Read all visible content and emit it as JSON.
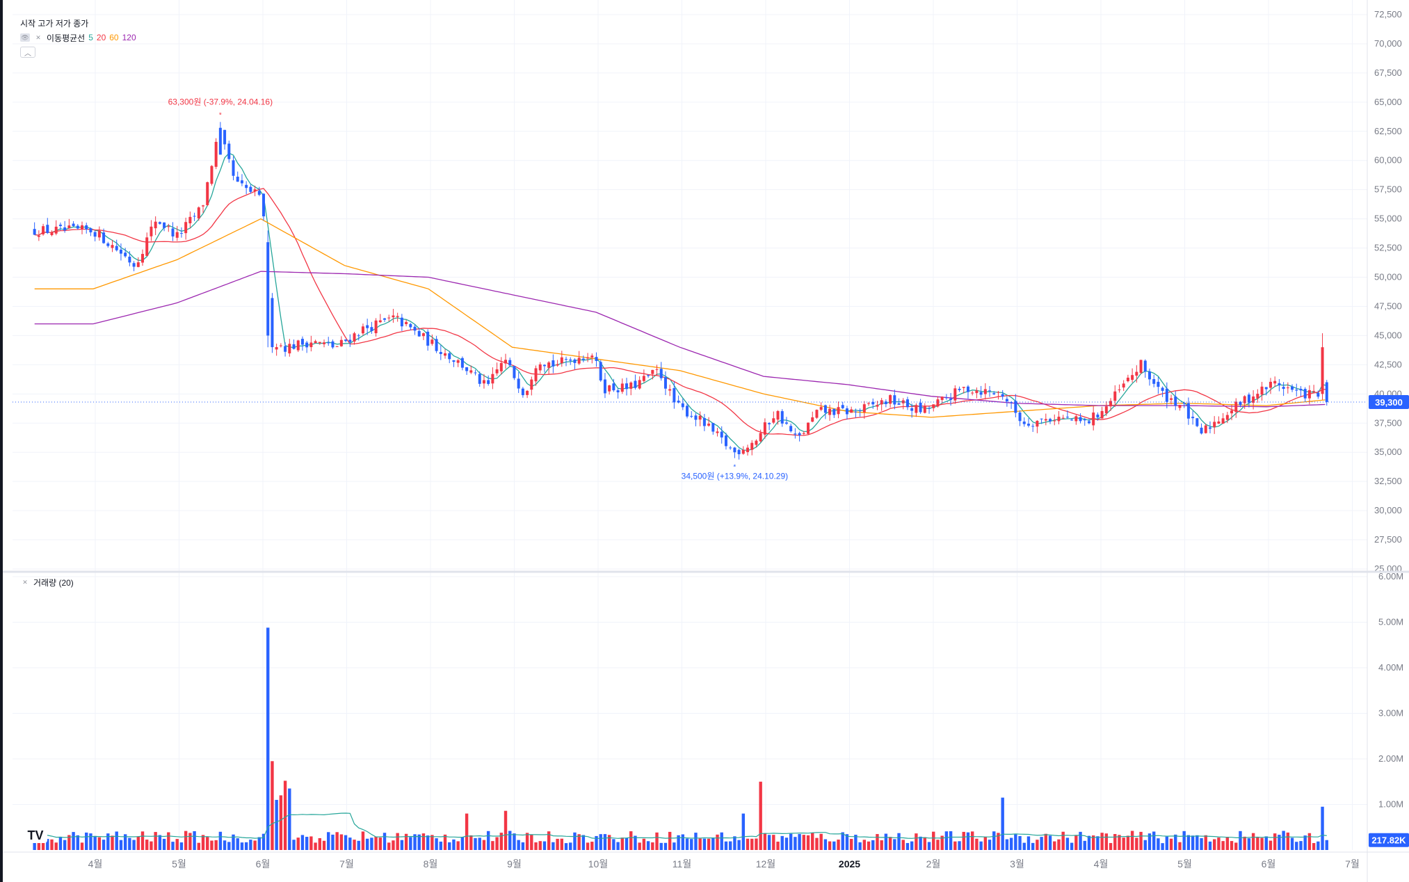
{
  "legend": {
    "ohlc_label": "시작 고가 저가 종가",
    "ma_label": "이동평균선",
    "ma_periods": [
      {
        "value": "5",
        "color": "#26a69a"
      },
      {
        "value": "20",
        "color": "#f23645"
      },
      {
        "value": "60",
        "color": "#ff9800"
      },
      {
        "value": "120",
        "color": "#9c27b0"
      }
    ],
    "collapse_icon": "chevron-up-icon",
    "volume_label": "거래량 (20)"
  },
  "annotations": {
    "high_label": "63,300원 (-37.9%, 24.04.16)",
    "low_label": "34,500원 (+13.9%, 24.10.29)"
  },
  "last_price_label": "39,300",
  "last_volume_label": "217.82K",
  "colors": {
    "up": "#f23645",
    "down": "#2962ff",
    "ma5": "#26a69a",
    "ma20": "#f23645",
    "ma60": "#ff9800",
    "ma120": "#9c27b0",
    "vol_ma": "#26a69a"
  },
  "chart_data": [
    {
      "type": "candlestick",
      "title": "",
      "ylim": [
        25000,
        72500
      ],
      "price_ticks": [
        "25,000",
        "27,500",
        "30,000",
        "32,500",
        "35,000",
        "37,500",
        "40,000",
        "42,500",
        "45,000",
        "47,500",
        "50,000",
        "52,500",
        "55,000",
        "57,500",
        "60,000",
        "62,500",
        "65,000",
        "67,500",
        "70,000",
        "72,500"
      ],
      "x_labels": [
        "4월",
        "5월",
        "6월",
        "7월",
        "8월",
        "9월",
        "10월",
        "11월",
        "12월",
        "2025",
        "2월",
        "3월",
        "4월",
        "5월",
        "6월",
        "7월"
      ],
      "anchors": [
        {
          "m": 0,
          "p": 54000
        },
        {
          "m": 0.35,
          "p": 52000
        },
        {
          "m": 0.5,
          "p": 51000
        },
        {
          "m": 0.75,
          "p": 55000
        },
        {
          "m": 1.0,
          "p": 53500
        },
        {
          "m": 1.3,
          "p": 56000
        },
        {
          "m": 1.5,
          "p": 62500
        },
        {
          "m": 1.7,
          "p": 58000
        },
        {
          "m": 1.97,
          "p": 57000
        },
        {
          "m": 2.05,
          "p": 55000
        },
        {
          "m": 2.1,
          "p": 44500
        },
        {
          "m": 2.3,
          "p": 44000
        },
        {
          "m": 2.6,
          "p": 44500
        },
        {
          "m": 2.9,
          "p": 44000
        },
        {
          "m": 3.2,
          "p": 45500
        },
        {
          "m": 3.6,
          "p": 46500
        },
        {
          "m": 4.0,
          "p": 44500
        },
        {
          "m": 4.4,
          "p": 42500
        },
        {
          "m": 4.7,
          "p": 40500
        },
        {
          "m": 4.9,
          "p": 43000
        },
        {
          "m": 5.15,
          "p": 40000
        },
        {
          "m": 5.3,
          "p": 43000
        },
        {
          "m": 5.5,
          "p": 42500
        },
        {
          "m": 5.95,
          "p": 43500
        },
        {
          "m": 6.1,
          "p": 40500
        },
        {
          "m": 6.4,
          "p": 40500
        },
        {
          "m": 6.75,
          "p": 42000
        },
        {
          "m": 6.95,
          "p": 39000
        },
        {
          "m": 7.2,
          "p": 38000
        },
        {
          "m": 7.65,
          "p": 35000
        },
        {
          "m": 7.9,
          "p": 36000
        },
        {
          "m": 8.15,
          "p": 38500
        },
        {
          "m": 8.4,
          "p": 36000
        },
        {
          "m": 8.65,
          "p": 38500
        },
        {
          "m": 9.1,
          "p": 38500
        },
        {
          "m": 9.5,
          "p": 39500
        },
        {
          "m": 9.9,
          "p": 38500
        },
        {
          "m": 10.4,
          "p": 40500
        },
        {
          "m": 10.85,
          "p": 40000
        },
        {
          "m": 11.1,
          "p": 37500
        },
        {
          "m": 11.5,
          "p": 38000
        },
        {
          "m": 11.85,
          "p": 37500
        },
        {
          "m": 12.1,
          "p": 39000
        },
        {
          "m": 12.5,
          "p": 42500
        },
        {
          "m": 12.75,
          "p": 40000
        },
        {
          "m": 13.0,
          "p": 39000
        },
        {
          "m": 13.2,
          "p": 36500
        },
        {
          "m": 13.45,
          "p": 38000
        },
        {
          "m": 13.75,
          "p": 39500
        },
        {
          "m": 14.1,
          "p": 41000
        },
        {
          "m": 14.4,
          "p": 40000
        },
        {
          "m": 14.6,
          "p": 40000
        },
        {
          "m": 14.7,
          "p": 40000
        },
        {
          "m": 14.72,
          "p": 39300
        }
      ],
      "high_mark": {
        "m": 1.5,
        "price": 63300
      },
      "low_mark": {
        "m": 7.65,
        "price": 34500
      },
      "last_price": 39300,
      "ma120_anchors": [
        {
          "m": 0,
          "p": 46000
        },
        {
          "m": 1,
          "p": 47800
        },
        {
          "m": 2,
          "p": 50500
        },
        {
          "m": 3,
          "p": 50300
        },
        {
          "m": 4,
          "p": 50000
        },
        {
          "m": 5,
          "p": 48500
        },
        {
          "m": 6,
          "p": 47000
        },
        {
          "m": 7,
          "p": 44000
        },
        {
          "m": 8,
          "p": 41500
        },
        {
          "m": 9,
          "p": 40800
        },
        {
          "m": 10,
          "p": 39800
        },
        {
          "m": 11,
          "p": 39200
        },
        {
          "m": 12,
          "p": 39000
        },
        {
          "m": 13,
          "p": 39000
        },
        {
          "m": 14,
          "p": 38900
        },
        {
          "m": 14.72,
          "p": 39100
        }
      ],
      "ma60_anchors": [
        {
          "m": 0,
          "p": 49000
        },
        {
          "m": 1,
          "p": 51500
        },
        {
          "m": 2,
          "p": 55000
        },
        {
          "m": 3,
          "p": 51000
        },
        {
          "m": 4,
          "p": 49000
        },
        {
          "m": 5,
          "p": 44000
        },
        {
          "m": 6,
          "p": 43000
        },
        {
          "m": 7,
          "p": 42000
        },
        {
          "m": 8,
          "p": 40000
        },
        {
          "m": 9,
          "p": 38500
        },
        {
          "m": 10,
          "p": 38000
        },
        {
          "m": 11,
          "p": 38500
        },
        {
          "m": 12,
          "p": 39000
        },
        {
          "m": 13,
          "p": 39200
        },
        {
          "m": 14,
          "p": 39000
        },
        {
          "m": 14.72,
          "p": 39500
        }
      ]
    },
    {
      "type": "bar",
      "title": "",
      "ylim": [
        0,
        6000000
      ],
      "volume_ticks": [
        "1.00M",
        "2.00M",
        "3.00M",
        "4.00M",
        "5.00M",
        "6.00M"
      ],
      "base_volume": 300000,
      "spikes": [
        {
          "m": 2.1,
          "v": 4880000,
          "dir": "down"
        },
        {
          "m": 2.15,
          "v": 1950000,
          "dir": "up"
        },
        {
          "m": 2.3,
          "v": 1520000,
          "dir": "up"
        },
        {
          "m": 2.35,
          "v": 1350000,
          "dir": "down"
        },
        {
          "m": 2.2,
          "v": 1100000,
          "dir": "down"
        },
        {
          "m": 2.25,
          "v": 1200000,
          "dir": "up"
        },
        {
          "m": 7.95,
          "v": 1500000,
          "dir": "up"
        },
        {
          "m": 7.75,
          "v": 800000,
          "dir": "down"
        },
        {
          "m": 10.85,
          "v": 1150000,
          "dir": "down"
        },
        {
          "m": 14.65,
          "v": 950000,
          "dir": "down"
        },
        {
          "m": 4.9,
          "v": 860000,
          "dir": "up"
        },
        {
          "m": 4.45,
          "v": 800000,
          "dir": "up"
        }
      ],
      "last_volume": 217820
    }
  ]
}
